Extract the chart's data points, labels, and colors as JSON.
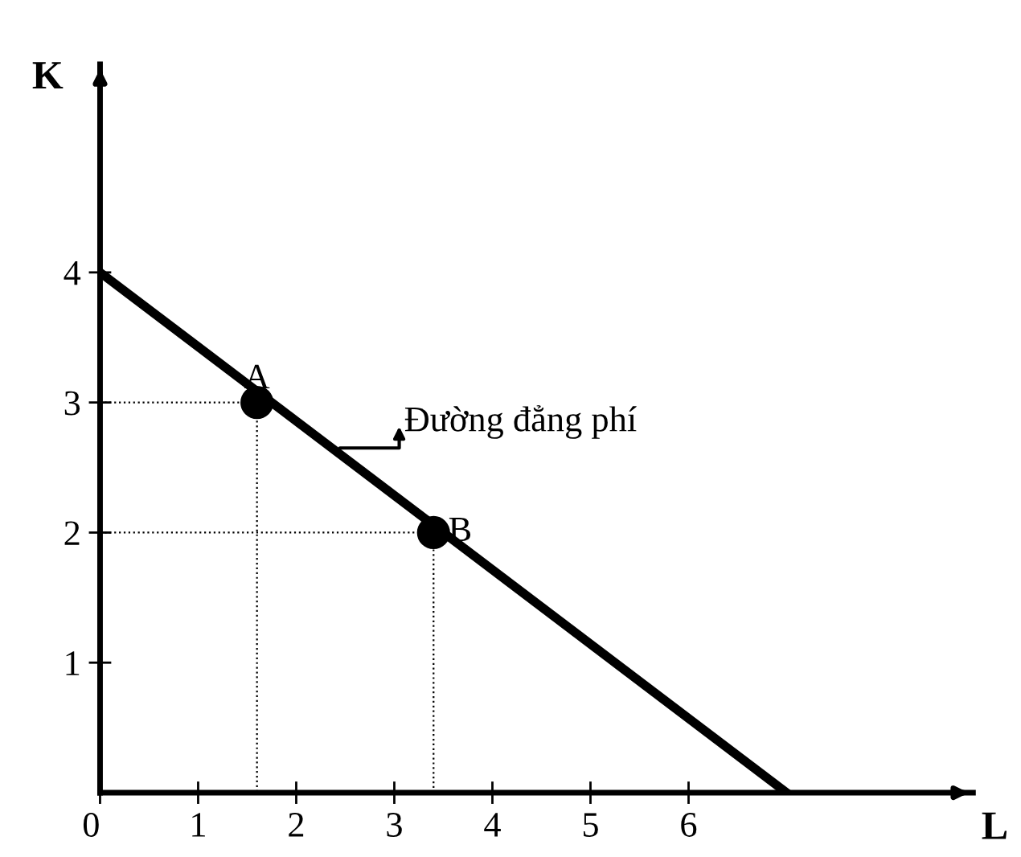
{
  "chart_data": {
    "type": "line",
    "xlabel": "L",
    "ylabel": "K",
    "xlim": [
      0,
      8.9
    ],
    "ylim": [
      0,
      5.6
    ],
    "xticks": [
      {
        "value": 0,
        "label": "0"
      },
      1,
      2,
      3,
      4,
      5,
      6
    ],
    "yticks": [
      1,
      2,
      3,
      4
    ],
    "grid": false,
    "legend": false,
    "series": [
      {
        "color": "#000000",
        "x": [
          0,
          7
        ],
        "values": [
          4,
          0
        ],
        "line_style": "solid",
        "marker": "none"
      },
      {
        "color": "#000000",
        "x": [
          0,
          1.6,
          1.6
        ],
        "values": [
          3,
          3,
          0
        ],
        "line_style": "dotted",
        "marker": "none"
      },
      {
        "color": "#000000",
        "x": [
          0,
          3.4,
          3.4
        ],
        "values": [
          2,
          2,
          0
        ],
        "line_style": "dotted",
        "marker": "none"
      },
      {
        "type": "scatter",
        "color": "#000000",
        "x": [
          1.6,
          3.4
        ],
        "values": [
          3,
          2
        ],
        "marker": "circle"
      }
    ],
    "annotations": [
      {
        "text": "A",
        "x": 1.6,
        "y": 3
      },
      {
        "text": "B",
        "x": 3.4,
        "y": 2
      },
      {
        "text": "Đường đẳng phí",
        "x": 2.4,
        "y": 2.65
      }
    ]
  }
}
